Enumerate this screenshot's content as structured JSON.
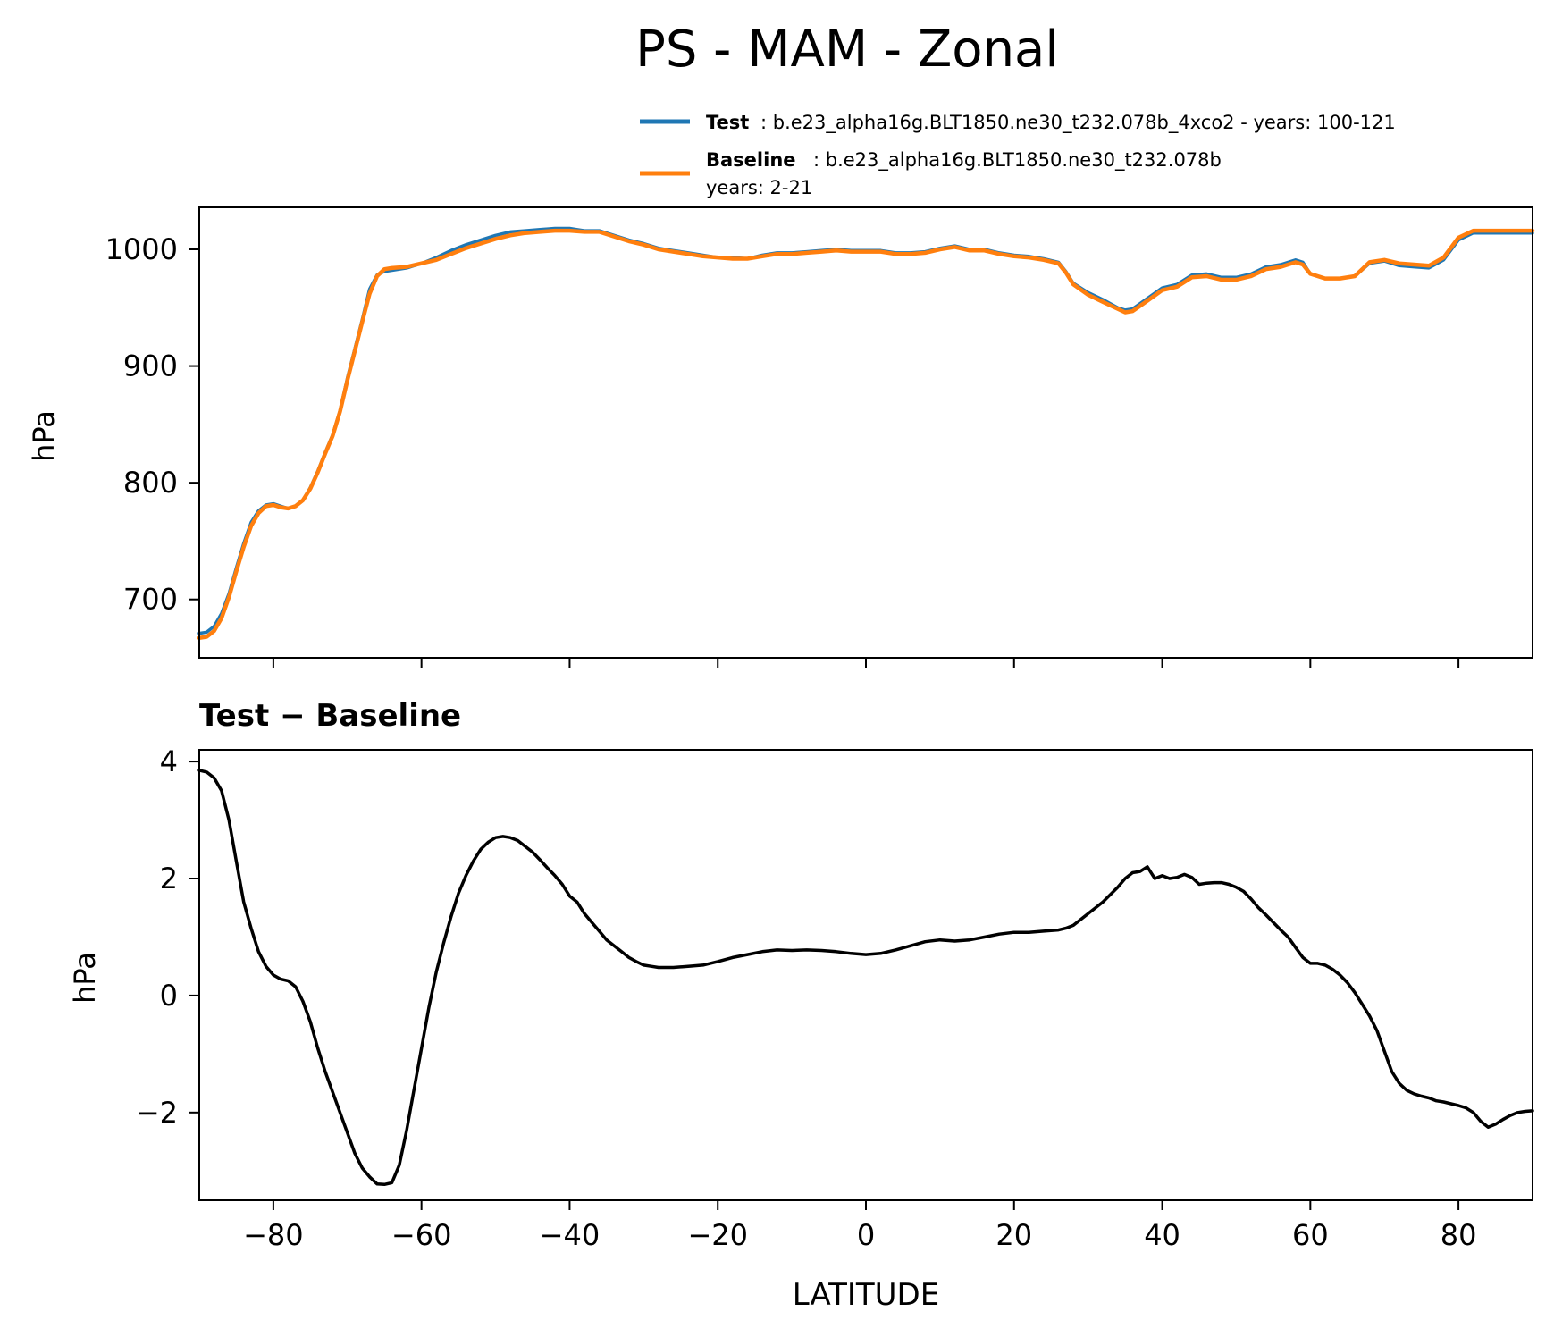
{
  "figure": {
    "title": "PS - MAM - Zonal"
  },
  "legend": {
    "test_label": "Test",
    "test_desc": ": b.e23_alpha16g.BLT1850.ne30_t232.078b_4xco2 - years: 100-121",
    "baseline_label": "Baseline",
    "baseline_desc": ": b.e23_alpha16g.BLT1850.ne30_t232.078b",
    "baseline_years": "years: 2-21",
    "placement": "top-right, above upper panel"
  },
  "colors": {
    "test": "#1f77b4",
    "baseline": "#ff7f0e",
    "diff": "#000000"
  },
  "chart_data": [
    {
      "type": "line",
      "title": "",
      "xlabel": "",
      "ylabel": "hPa",
      "xlim": [
        -90,
        90
      ],
      "ylim": [
        650,
        1036
      ],
      "yticks": [
        "700",
        "800",
        "900",
        "1000"
      ],
      "xticks": [
        -80,
        -60,
        -40,
        -20,
        0,
        20,
        40,
        60,
        80
      ],
      "grid": false,
      "series": [
        {
          "name": "Test",
          "x": [
            -90,
            -89,
            -88,
            -87,
            -86,
            -85,
            -84,
            -83,
            -82,
            -81,
            -80,
            -79,
            -78,
            -77,
            -76,
            -75,
            -74,
            -73,
            -72,
            -71,
            -70,
            -69,
            -68,
            -67,
            -66,
            -65,
            -64,
            -62,
            -60,
            -58,
            -56,
            -54,
            -52,
            -50,
            -48,
            -46,
            -44,
            -42,
            -40,
            -38,
            -36,
            -34,
            -32,
            -30,
            -28,
            -26,
            -24,
            -22,
            -20,
            -18,
            -16,
            -14,
            -12,
            -10,
            -8,
            -6,
            -4,
            -2,
            0,
            2,
            4,
            6,
            8,
            10,
            12,
            14,
            16,
            18,
            20,
            22,
            24,
            26,
            27,
            28,
            30,
            32,
            34,
            35,
            36,
            38,
            40,
            42,
            44,
            46,
            48,
            50,
            52,
            54,
            56,
            58,
            59,
            60,
            62,
            64,
            66,
            68,
            70,
            72,
            74,
            76,
            78,
            80,
            82,
            84,
            86,
            88,
            90
          ],
          "values": [
            671,
            672,
            677,
            688,
            705,
            727,
            748,
            766,
            776,
            781,
            782,
            780,
            778,
            780,
            785,
            796,
            810,
            826,
            841,
            862,
            890,
            915,
            940,
            966,
            978,
            981,
            982,
            984,
            988,
            993,
            999,
            1004,
            1008,
            1012,
            1015,
            1016,
            1017,
            1018,
            1018,
            1016,
            1016,
            1012,
            1008,
            1005,
            1001,
            999,
            997,
            995,
            993,
            993,
            992,
            995,
            997,
            997,
            998,
            999,
            1000,
            999,
            999,
            999,
            997,
            997,
            998,
            1001,
            1003,
            1000,
            1000,
            997,
            995,
            994,
            992,
            989,
            981,
            971,
            963,
            957,
            950,
            948,
            949,
            958,
            967,
            970,
            978,
            979,
            976,
            976,
            979,
            985,
            987,
            991,
            989,
            979,
            975,
            975,
            977,
            988,
            990,
            986,
            985,
            984,
            991,
            1008,
            1014,
            1014,
            1014,
            1014,
            1014
          ]
        },
        {
          "name": "Baseline",
          "x": [
            -90,
            -89,
            -88,
            -87,
            -86,
            -85,
            -84,
            -83,
            -82,
            -81,
            -80,
            -79,
            -78,
            -77,
            -76,
            -75,
            -74,
            -73,
            -72,
            -71,
            -70,
            -69,
            -68,
            -67,
            -66,
            -65,
            -64,
            -62,
            -60,
            -58,
            -56,
            -54,
            -52,
            -50,
            -48,
            -46,
            -44,
            -42,
            -40,
            -38,
            -36,
            -34,
            -32,
            -30,
            -28,
            -26,
            -24,
            -22,
            -20,
            -18,
            -16,
            -14,
            -12,
            -10,
            -8,
            -6,
            -4,
            -2,
            0,
            2,
            4,
            6,
            8,
            10,
            12,
            14,
            16,
            18,
            20,
            22,
            24,
            26,
            27,
            28,
            30,
            32,
            34,
            35,
            36,
            38,
            40,
            42,
            44,
            46,
            48,
            50,
            52,
            54,
            56,
            58,
            59,
            60,
            62,
            64,
            66,
            68,
            70,
            72,
            74,
            76,
            78,
            80,
            82,
            84,
            86,
            88,
            90
          ],
          "values": [
            667,
            668,
            673,
            684,
            702,
            724,
            745,
            763,
            774,
            780,
            781,
            779,
            778,
            780,
            785,
            795,
            809,
            825,
            840,
            861,
            888,
            913,
            938,
            962,
            977,
            983,
            984,
            985,
            988,
            991,
            996,
            1001,
            1005,
            1009,
            1012,
            1014,
            1015,
            1016,
            1016,
            1015,
            1015,
            1011,
            1007,
            1004,
            1000,
            998,
            996,
            994,
            993,
            992,
            992,
            994,
            996,
            996,
            997,
            998,
            999,
            998,
            998,
            998,
            996,
            996,
            997,
            1000,
            1002,
            999,
            999,
            996,
            994,
            993,
            991,
            988,
            980,
            970,
            961,
            955,
            949,
            946,
            947,
            956,
            965,
            968,
            976,
            977,
            974,
            974,
            977,
            983,
            985,
            989,
            987,
            979,
            975,
            975,
            977,
            989,
            991,
            988,
            987,
            986,
            993,
            1010,
            1016,
            1016,
            1016,
            1016,
            1016
          ]
        }
      ]
    },
    {
      "type": "line",
      "title": "Test − Baseline",
      "xlabel": "LATITUDE",
      "ylabel": "hPa",
      "xlim": [
        -90,
        90
      ],
      "ylim": [
        -3.5,
        4.2
      ],
      "yticks": [
        "4",
        "2",
        "0",
        "−2"
      ],
      "xticks": [
        "−80",
        "−60",
        "−40",
        "−20",
        "0",
        "20",
        "40",
        "60",
        "80"
      ],
      "grid": false,
      "series": [
        {
          "x": [
            -90,
            -89,
            -88,
            -87,
            -86,
            -85,
            -84,
            -83,
            -82,
            -81,
            -80,
            -79,
            -78,
            -77,
            -76,
            -75,
            -74,
            -73,
            -72,
            -71,
            -70,
            -69,
            -68,
            -67,
            -66,
            -65,
            -64,
            -63,
            -62,
            -61,
            -60,
            -59,
            -58,
            -57,
            -56,
            -55,
            -54,
            -53,
            -52,
            -51,
            -50,
            -49,
            -48,
            -47,
            -46,
            -45,
            -44,
            -43,
            -42,
            -41,
            -40,
            -39,
            -38,
            -37,
            -36,
            -35,
            -34,
            -33,
            -32,
            -31,
            -30,
            -29,
            -28,
            -26,
            -24,
            -22,
            -20,
            -18,
            -16,
            -14,
            -12,
            -10,
            -8,
            -6,
            -4,
            -2,
            0,
            2,
            4,
            6,
            8,
            10,
            12,
            14,
            16,
            18,
            20,
            22,
            24,
            26,
            27,
            28,
            30,
            32,
            34,
            35,
            36,
            37,
            38,
            38.5,
            39,
            40,
            41,
            42,
            43,
            44,
            45,
            46,
            47,
            48,
            49,
            50,
            51,
            52,
            53,
            54,
            55,
            56,
            57,
            58,
            59,
            60,
            61,
            62,
            63,
            64,
            65,
            66,
            67,
            68,
            69,
            70,
            71,
            72,
            73,
            74,
            75,
            76,
            77,
            78,
            79,
            80,
            81,
            82,
            83,
            84,
            85,
            86,
            87,
            88,
            89,
            90
          ],
          "values": [
            3.85,
            3.82,
            3.72,
            3.5,
            3.0,
            2.3,
            1.6,
            1.15,
            0.75,
            0.5,
            0.35,
            0.28,
            0.25,
            0.15,
            -0.1,
            -0.45,
            -0.9,
            -1.3,
            -1.65,
            -2.0,
            -2.35,
            -2.7,
            -2.95,
            -3.1,
            -3.22,
            -3.23,
            -3.2,
            -2.9,
            -2.3,
            -1.6,
            -0.9,
            -0.2,
            0.4,
            0.9,
            1.35,
            1.75,
            2.05,
            2.3,
            2.5,
            2.62,
            2.7,
            2.72,
            2.7,
            2.65,
            2.55,
            2.45,
            2.32,
            2.18,
            2.05,
            1.9,
            1.7,
            1.6,
            1.4,
            1.25,
            1.1,
            0.95,
            0.85,
            0.75,
            0.65,
            0.58,
            0.52,
            0.5,
            0.48,
            0.48,
            0.5,
            0.52,
            0.58,
            0.65,
            0.7,
            0.75,
            0.78,
            0.77,
            0.78,
            0.77,
            0.75,
            0.72,
            0.7,
            0.72,
            0.78,
            0.85,
            0.92,
            0.95,
            0.93,
            0.95,
            1.0,
            1.05,
            1.08,
            1.08,
            1.1,
            1.12,
            1.15,
            1.2,
            1.4,
            1.6,
            1.85,
            2.0,
            2.1,
            2.12,
            2.2,
            2.1,
            2.0,
            2.05,
            2.0,
            2.02,
            2.07,
            2.02,
            1.9,
            1.92,
            1.93,
            1.93,
            1.9,
            1.85,
            1.78,
            1.65,
            1.5,
            1.38,
            1.25,
            1.12,
            1.0,
            0.82,
            0.65,
            0.55,
            0.55,
            0.52,
            0.45,
            0.35,
            0.22,
            0.05,
            -0.15,
            -0.35,
            -0.6,
            -0.95,
            -1.3,
            -1.5,
            -1.62,
            -1.68,
            -1.72,
            -1.75,
            -1.8,
            -1.82,
            -1.85,
            -1.88,
            -1.92,
            -2.0,
            -2.15,
            -2.25,
            -2.2,
            -2.12,
            -2.05,
            -2.0,
            -1.98,
            -1.97
          ]
        }
      ]
    }
  ]
}
